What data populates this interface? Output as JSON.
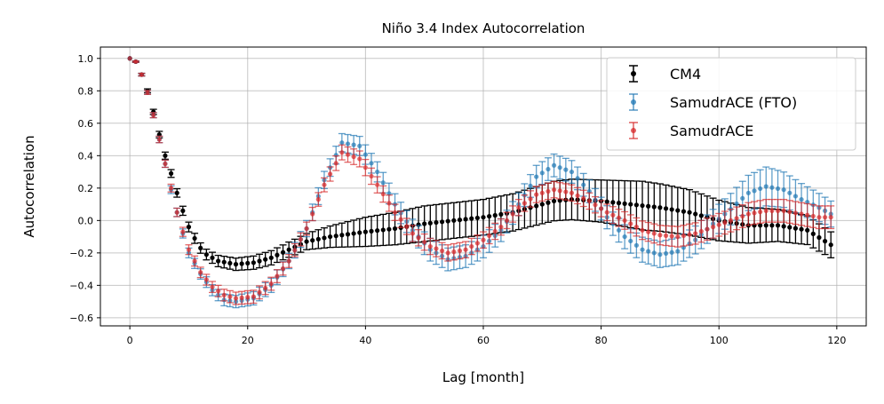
{
  "chart_data": {
    "type": "scatter",
    "title": "Niño 3.4 Index Autocorrelation",
    "xlabel": "Lag [month]",
    "ylabel": "Autocorrelation",
    "xlim": [
      -5,
      125
    ],
    "ylim": [
      -0.65,
      1.07
    ],
    "xticks": [
      0,
      20,
      40,
      60,
      80,
      100,
      120
    ],
    "yticks": [
      -0.6,
      -0.4,
      -0.2,
      0.0,
      0.2,
      0.4,
      0.6,
      0.8,
      1.0
    ],
    "xtick_labels": [
      "0",
      "20",
      "40",
      "60",
      "80",
      "100",
      "120"
    ],
    "ytick_labels": [
      "−0.6",
      "−0.4",
      "−0.2",
      "0.0",
      "0.2",
      "0.4",
      "0.6",
      "0.8",
      "1.0"
    ],
    "grid": true,
    "legend_position": "top-right",
    "x_range": [
      0,
      119
    ],
    "series": [
      {
        "name": "CM4",
        "color": "#000000",
        "keypoints": [
          [
            0,
            1.0
          ],
          [
            1,
            0.98
          ],
          [
            2,
            0.9
          ],
          [
            3,
            0.8
          ],
          [
            4,
            0.67
          ],
          [
            5,
            0.53
          ],
          [
            6,
            0.4
          ],
          [
            7,
            0.29
          ],
          [
            8,
            0.17
          ],
          [
            9,
            0.06
          ],
          [
            10,
            -0.04
          ],
          [
            11,
            -0.11
          ],
          [
            12,
            -0.17
          ],
          [
            13,
            -0.21
          ],
          [
            15,
            -0.25
          ],
          [
            18,
            -0.27
          ],
          [
            21,
            -0.26
          ],
          [
            24,
            -0.23
          ],
          [
            27,
            -0.18
          ],
          [
            30,
            -0.13
          ],
          [
            34,
            -0.1
          ],
          [
            40,
            -0.07
          ],
          [
            45,
            -0.05
          ],
          [
            50,
            -0.02
          ],
          [
            55,
            0.0
          ],
          [
            60,
            0.02
          ],
          [
            65,
            0.05
          ],
          [
            70,
            0.1
          ],
          [
            72,
            0.12
          ],
          [
            75,
            0.13
          ],
          [
            80,
            0.12
          ],
          [
            85,
            0.1
          ],
          [
            90,
            0.08
          ],
          [
            95,
            0.05
          ],
          [
            100,
            0.0
          ],
          [
            105,
            -0.03
          ],
          [
            110,
            -0.03
          ],
          [
            115,
            -0.06
          ],
          [
            119,
            -0.15
          ]
        ],
        "error_keypoints": [
          [
            0,
            0.0
          ],
          [
            5,
            0.02
          ],
          [
            10,
            0.03
          ],
          [
            20,
            0.04
          ],
          [
            30,
            0.05
          ],
          [
            40,
            0.09
          ],
          [
            50,
            0.11
          ],
          [
            60,
            0.11
          ],
          [
            70,
            0.12
          ],
          [
            80,
            0.13
          ],
          [
            87,
            0.15
          ],
          [
            95,
            0.14
          ],
          [
            105,
            0.11
          ],
          [
            119,
            0.08
          ]
        ]
      },
      {
        "name": "SamudrACE (FTO)",
        "color": "#1f77b4",
        "keypoints": [
          [
            0,
            1.0
          ],
          [
            1,
            0.98
          ],
          [
            2,
            0.9
          ],
          [
            3,
            0.79
          ],
          [
            4,
            0.65
          ],
          [
            5,
            0.5
          ],
          [
            6,
            0.35
          ],
          [
            7,
            0.19
          ],
          [
            8,
            0.05
          ],
          [
            9,
            -0.08
          ],
          [
            10,
            -0.2
          ],
          [
            12,
            -0.33
          ],
          [
            14,
            -0.43
          ],
          [
            16,
            -0.49
          ],
          [
            18,
            -0.5
          ],
          [
            21,
            -0.48
          ],
          [
            24,
            -0.4
          ],
          [
            27,
            -0.25
          ],
          [
            30,
            -0.05
          ],
          [
            33,
            0.25
          ],
          [
            36,
            0.48
          ],
          [
            39,
            0.46
          ],
          [
            42,
            0.3
          ],
          [
            45,
            0.1
          ],
          [
            48,
            -0.06
          ],
          [
            51,
            -0.18
          ],
          [
            54,
            -0.24
          ],
          [
            57,
            -0.22
          ],
          [
            60,
            -0.16
          ],
          [
            63,
            -0.06
          ],
          [
            66,
            0.1
          ],
          [
            69,
            0.27
          ],
          [
            72,
            0.34
          ],
          [
            75,
            0.3
          ],
          [
            78,
            0.18
          ],
          [
            81,
            0.02
          ],
          [
            84,
            -0.1
          ],
          [
            87,
            -0.18
          ],
          [
            90,
            -0.21
          ],
          [
            93,
            -0.19
          ],
          [
            96,
            -0.12
          ],
          [
            99,
            -0.02
          ],
          [
            102,
            0.07
          ],
          [
            105,
            0.17
          ],
          [
            108,
            0.21
          ],
          [
            111,
            0.19
          ],
          [
            114,
            0.13
          ],
          [
            117,
            0.08
          ],
          [
            119,
            0.04
          ]
        ],
        "error_keypoints": [
          [
            0,
            0.0
          ],
          [
            5,
            0.02
          ],
          [
            10,
            0.03
          ],
          [
            20,
            0.04
          ],
          [
            30,
            0.05
          ],
          [
            40,
            0.06
          ],
          [
            50,
            0.07
          ],
          [
            60,
            0.07
          ],
          [
            70,
            0.07
          ],
          [
            80,
            0.07
          ],
          [
            90,
            0.08
          ],
          [
            100,
            0.09
          ],
          [
            108,
            0.12
          ],
          [
            119,
            0.08
          ]
        ]
      },
      {
        "name": "SamudrACE",
        "color": "#d62728",
        "keypoints": [
          [
            0,
            1.0
          ],
          [
            1,
            0.98
          ],
          [
            2,
            0.9
          ],
          [
            3,
            0.79
          ],
          [
            4,
            0.65
          ],
          [
            5,
            0.5
          ],
          [
            6,
            0.35
          ],
          [
            7,
            0.2
          ],
          [
            8,
            0.05
          ],
          [
            9,
            -0.07
          ],
          [
            10,
            -0.18
          ],
          [
            12,
            -0.32
          ],
          [
            14,
            -0.41
          ],
          [
            16,
            -0.46
          ],
          [
            18,
            -0.48
          ],
          [
            21,
            -0.47
          ],
          [
            24,
            -0.39
          ],
          [
            27,
            -0.25
          ],
          [
            30,
            -0.05
          ],
          [
            33,
            0.22
          ],
          [
            36,
            0.42
          ],
          [
            39,
            0.38
          ],
          [
            42,
            0.22
          ],
          [
            45,
            0.05
          ],
          [
            48,
            -0.08
          ],
          [
            51,
            -0.16
          ],
          [
            54,
            -0.2
          ],
          [
            57,
            -0.18
          ],
          [
            60,
            -0.12
          ],
          [
            63,
            -0.04
          ],
          [
            66,
            0.08
          ],
          [
            69,
            0.16
          ],
          [
            72,
            0.19
          ],
          [
            75,
            0.17
          ],
          [
            78,
            0.12
          ],
          [
            81,
            0.05
          ],
          [
            84,
            0.0
          ],
          [
            87,
            -0.06
          ],
          [
            90,
            -0.09
          ],
          [
            93,
            -0.1
          ],
          [
            96,
            -0.08
          ],
          [
            99,
            -0.04
          ],
          [
            102,
            0.0
          ],
          [
            105,
            0.04
          ],
          [
            108,
            0.06
          ],
          [
            111,
            0.06
          ],
          [
            114,
            0.04
          ],
          [
            117,
            0.02
          ],
          [
            119,
            0.02
          ]
        ],
        "error_keypoints": [
          [
            0,
            0.0
          ],
          [
            5,
            0.02
          ],
          [
            10,
            0.03
          ],
          [
            20,
            0.04
          ],
          [
            30,
            0.04
          ],
          [
            40,
            0.05
          ],
          [
            50,
            0.05
          ],
          [
            60,
            0.05
          ],
          [
            70,
            0.05
          ],
          [
            80,
            0.05
          ],
          [
            90,
            0.06
          ],
          [
            100,
            0.07
          ],
          [
            110,
            0.07
          ],
          [
            119,
            0.07
          ]
        ]
      }
    ]
  }
}
